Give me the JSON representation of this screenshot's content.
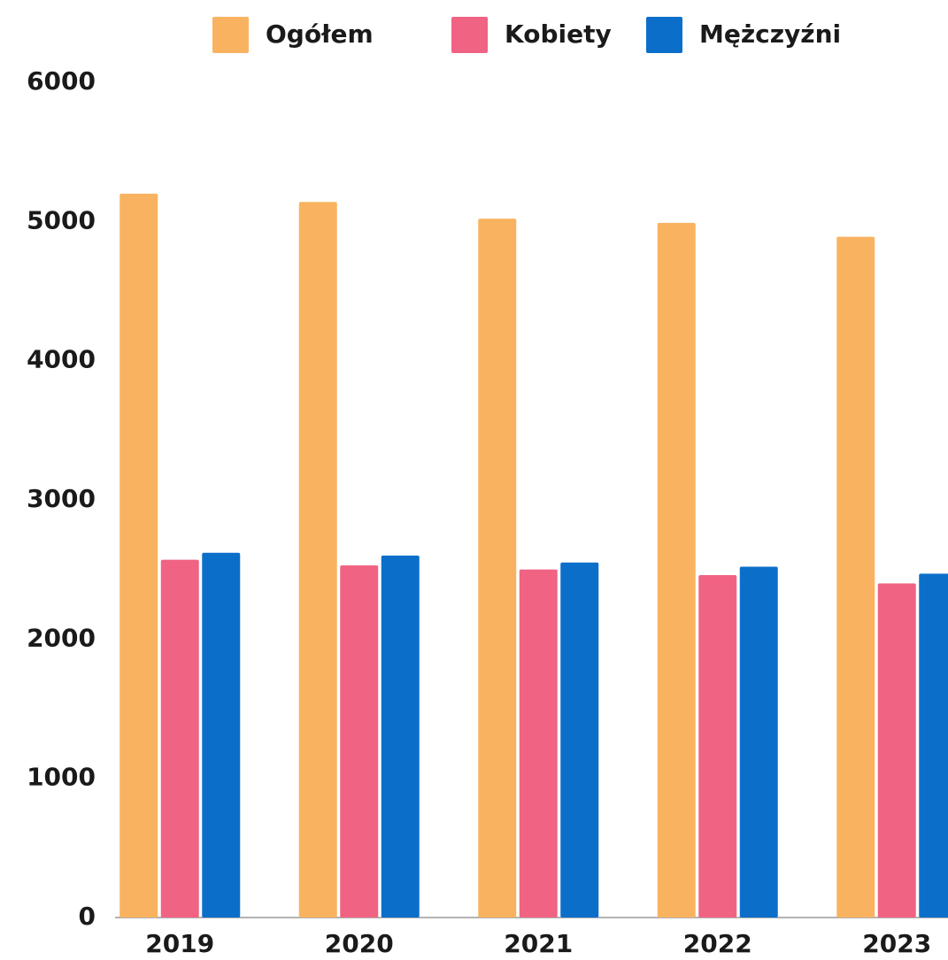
{
  "chart_data": {
    "type": "bar",
    "categories": [
      "2019",
      "2020",
      "2021",
      "2022",
      "2023"
    ],
    "series": [
      {
        "name": "Ogółem",
        "color": "#f9b360",
        "values": [
          5200,
          5140,
          5020,
          4990,
          4890
        ]
      },
      {
        "name": "Kobiety",
        "color": "#f06383",
        "values": [
          2570,
          2530,
          2500,
          2460,
          2400
        ]
      },
      {
        "name": "Mężczyźni",
        "color": "#0b6fca",
        "values": [
          2620,
          2600,
          2550,
          2520,
          2470
        ]
      }
    ],
    "ylim": [
      0,
      6000
    ],
    "yticks": [
      0,
      1000,
      2000,
      3000,
      4000,
      5000,
      6000
    ],
    "grid": true,
    "legend": "top"
  }
}
